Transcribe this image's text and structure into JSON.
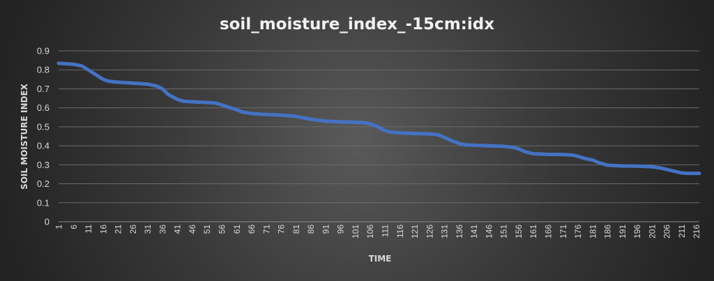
{
  "chart_data": {
    "type": "line",
    "title": "soil_moisture_index_-15cm:idx",
    "xlabel": "TIME",
    "ylabel": "SOIL MOISTURE INDEX",
    "ylim": [
      0,
      0.9
    ],
    "yticks": [
      "0",
      "0.1",
      "0.2",
      "0.3",
      "0.4",
      "0.5",
      "0.6",
      "0.7",
      "0.8",
      "0.9"
    ],
    "xlim": [
      1,
      217
    ],
    "xticks": [
      "1",
      "6",
      "11",
      "16",
      "21",
      "26",
      "31",
      "36",
      "41",
      "46",
      "51",
      "56",
      "61",
      "66",
      "71",
      "76",
      "81",
      "86",
      "91",
      "96",
      "101",
      "106",
      "111",
      "116",
      "121",
      "126",
      "131",
      "136",
      "141",
      "146",
      "151",
      "156",
      "161",
      "166",
      "171",
      "176",
      "181",
      "186",
      "191",
      "196",
      "201",
      "206",
      "211",
      "216"
    ],
    "grid": true,
    "legend": "none",
    "line_color": "#4472c4",
    "series": [
      {
        "x": [
          1,
          6,
          9,
          11,
          13,
          16,
          18,
          21,
          26,
          31,
          34,
          36,
          38,
          41,
          43,
          46,
          51,
          54,
          56,
          61,
          63,
          66,
          71,
          76,
          81,
          86,
          91,
          96,
          101,
          104,
          106,
          108,
          111,
          113,
          116,
          121,
          126,
          129,
          131,
          133,
          136,
          138,
          141,
          146,
          151,
          154,
          156,
          158,
          161,
          166,
          171,
          174,
          176,
          178,
          181,
          183,
          186,
          188,
          191,
          196,
          201,
          204,
          206,
          208,
          211,
          213,
          216,
          217
        ],
        "values": [
          0.835,
          0.83,
          0.82,
          0.8,
          0.78,
          0.75,
          0.74,
          0.735,
          0.73,
          0.725,
          0.715,
          0.7,
          0.67,
          0.645,
          0.635,
          0.632,
          0.628,
          0.625,
          0.615,
          0.59,
          0.578,
          0.57,
          0.565,
          0.562,
          0.555,
          0.54,
          0.53,
          0.526,
          0.524,
          0.522,
          0.515,
          0.505,
          0.48,
          0.472,
          0.468,
          0.465,
          0.463,
          0.458,
          0.445,
          0.43,
          0.412,
          0.405,
          0.403,
          0.4,
          0.397,
          0.392,
          0.385,
          0.37,
          0.358,
          0.355,
          0.354,
          0.352,
          0.345,
          0.335,
          0.325,
          0.312,
          0.298,
          0.296,
          0.294,
          0.293,
          0.29,
          0.283,
          0.276,
          0.268,
          0.257,
          0.255,
          0.255,
          0.255
        ]
      }
    ]
  }
}
